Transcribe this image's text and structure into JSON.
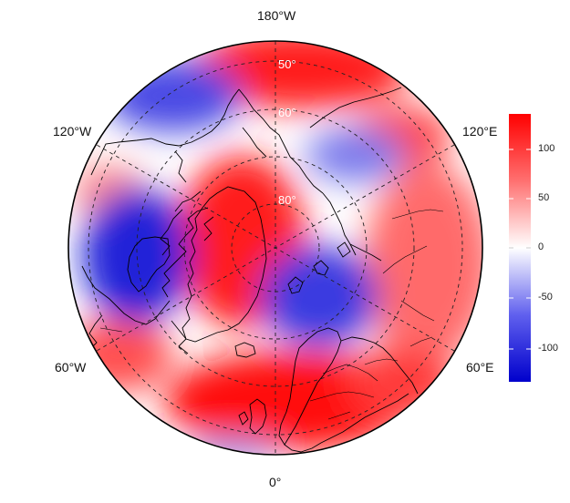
{
  "map": {
    "projection": "north-polar-stereographic",
    "center": "north pole",
    "lon_labels": [
      "180°W",
      "120°W",
      "120°E",
      "60°W",
      "60°E",
      "0°"
    ],
    "lat_labels": [
      "50°",
      "60°",
      "80°"
    ],
    "graticule_latitudes": [
      50,
      60,
      70,
      80
    ],
    "graticule_longitudes_every_degrees": 60,
    "coastlines": true,
    "country_borders": true
  },
  "colorbar": {
    "ticks": [
      "100",
      "50",
      "0",
      "-50",
      "-100"
    ],
    "min": -130,
    "max": 130,
    "low_color": "#0000cc",
    "mid_color": "#ffffff",
    "high_color": "#ff0000",
    "placement": "right"
  },
  "field_pattern": {
    "positive_centers": [
      "Greenland / Canadian Arctic",
      "North Atlantic / British Isles",
      "North Pacific (top)"
    ],
    "negative_centers": [
      "Hudson Bay / Central Canada",
      "Barents-Kara Seas",
      "Alaska-Bering sector",
      "East Siberia"
    ]
  }
}
